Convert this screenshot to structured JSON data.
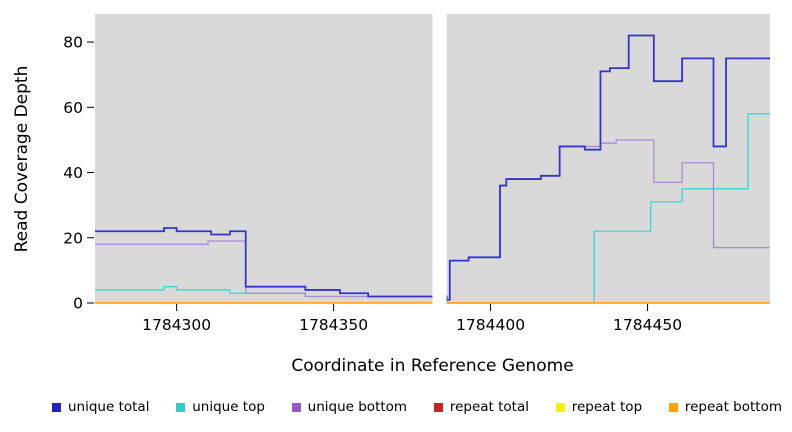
{
  "figure": {
    "background": "#ffffff",
    "plot_background": "#d9d9d9"
  },
  "chart_data": {
    "type": "line",
    "subtype": "step",
    "title": "",
    "xlabel": "Coordinate in Reference Genome",
    "ylabel": "Read Coverage Depth",
    "xlim": [
      1784274,
      1784489
    ],
    "ylim": [
      0,
      88.6
    ],
    "x_ticks": [
      1784300,
      1784350,
      1784400,
      1784450
    ],
    "y_ticks": [
      0,
      20,
      40,
      60,
      80
    ],
    "grid": false,
    "legend_position": "bottom",
    "gap_region": {
      "x_start": 1784381.5,
      "x_end": 1784386,
      "color": "#ffffff"
    },
    "series": [
      {
        "id": "repeat-total",
        "name": "repeat total",
        "color": "#CC2222",
        "line_width": 1,
        "steps": [
          [
            1784274,
            0
          ]
        ]
      },
      {
        "id": "repeat-top",
        "name": "repeat top",
        "color": "#F2F215",
        "line_width": 1,
        "steps": [
          [
            1784274,
            0
          ]
        ]
      },
      {
        "id": "unique-top",
        "name": "unique top",
        "color": "#3ED6D6",
        "line_width": 1.3,
        "steps": [
          [
            1784274,
            4
          ],
          [
            1784296,
            5
          ],
          [
            1784300,
            4
          ],
          [
            1784317,
            3
          ],
          [
            1784341,
            2
          ],
          [
            1784361,
            2
          ],
          [
            1784386,
            0
          ],
          [
            1784433,
            22
          ],
          [
            1784451,
            31
          ],
          [
            1784461,
            35
          ],
          [
            1784482,
            58
          ]
        ]
      },
      {
        "id": "repeat-bottom",
        "name": "repeat bottom",
        "color": "#FFA100",
        "line_width": 1.5,
        "steps": [
          [
            1784274,
            0
          ]
        ]
      },
      {
        "id": "unique-bottom",
        "name": "unique bottom",
        "color": "#A98CD6",
        "line_width": 1.3,
        "steps": [
          [
            1784274,
            18
          ],
          [
            1784310,
            19
          ],
          [
            1784322,
            3
          ],
          [
            1784341,
            2
          ],
          [
            1784386,
            1
          ],
          [
            1784387,
            13
          ],
          [
            1784393,
            14
          ],
          [
            1784403,
            36
          ],
          [
            1784405,
            38
          ],
          [
            1784416,
            39
          ],
          [
            1784422,
            48
          ],
          [
            1784435,
            49
          ],
          [
            1784440,
            50
          ],
          [
            1784452,
            37
          ],
          [
            1784461,
            43
          ],
          [
            1784471,
            17
          ]
        ]
      },
      {
        "id": "unique-total",
        "name": "unique total",
        "color": "#3434CD",
        "line_width": 1.8,
        "steps": [
          [
            1784274,
            22
          ],
          [
            1784296,
            23
          ],
          [
            1784300,
            22
          ],
          [
            1784311,
            21
          ],
          [
            1784317,
            22
          ],
          [
            1784322,
            5
          ],
          [
            1784341,
            4
          ],
          [
            1784352,
            3
          ],
          [
            1784361,
            2
          ],
          [
            1784386,
            1
          ],
          [
            1784387,
            13
          ],
          [
            1784393,
            14
          ],
          [
            1784403,
            36
          ],
          [
            1784405,
            38
          ],
          [
            1784416,
            39
          ],
          [
            1784422,
            48
          ],
          [
            1784430,
            47
          ],
          [
            1784435,
            71
          ],
          [
            1784438,
            72
          ],
          [
            1784444,
            82
          ],
          [
            1784452,
            68
          ],
          [
            1784461,
            75
          ],
          [
            1784471,
            48
          ],
          [
            1784475,
            75
          ]
        ]
      }
    ]
  },
  "legend": {
    "items": [
      {
        "id": "unique-total",
        "label": "unique total",
        "color": "#2222CC"
      },
      {
        "id": "unique-top",
        "label": "unique top",
        "color": "#33CCCC"
      },
      {
        "id": "unique-bottom",
        "label": "unique bottom",
        "color": "#9955CC"
      },
      {
        "id": "repeat-total",
        "label": "repeat total",
        "color": "#CC2222"
      },
      {
        "id": "repeat-top",
        "label": "repeat top",
        "color": "#F2F215"
      },
      {
        "id": "repeat-bottom",
        "label": "repeat bottom",
        "color": "#FFA100"
      }
    ]
  }
}
